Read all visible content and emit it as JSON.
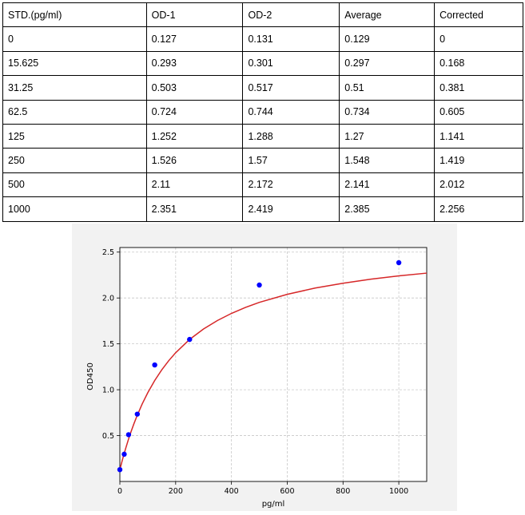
{
  "table": {
    "headers": [
      "STD.(pg/ml)",
      "OD-1",
      "OD-2",
      "Average",
      "Corrected"
    ],
    "rows": [
      [
        "0",
        "0.127",
        "0.131",
        "0.129",
        "0"
      ],
      [
        "15.625",
        "0.293",
        "0.301",
        "0.297",
        "0.168"
      ],
      [
        "31.25",
        "0.503",
        "0.517",
        "0.51",
        "0.381"
      ],
      [
        "62.5",
        "0.724",
        "0.744",
        "0.734",
        "0.605"
      ],
      [
        "125",
        "1.252",
        "1.288",
        "1.27",
        "1.141"
      ],
      [
        "250",
        "1.526",
        "1.57",
        "1.548",
        "1.419"
      ],
      [
        "500",
        "2.11",
        "2.172",
        "2.141",
        "2.012"
      ],
      [
        "1000",
        "2.351",
        "2.419",
        "2.385",
        "2.256"
      ]
    ]
  },
  "chart_data": {
    "type": "scatter",
    "xlabel": "pg/ml",
    "ylabel": "OD450",
    "xlim": [
      0,
      1100
    ],
    "ylim": [
      0,
      2.55
    ],
    "xticks": [
      "0",
      "200",
      "400",
      "600",
      "800",
      "1000"
    ],
    "yticks": [
      "0.5",
      "1.0",
      "1.5",
      "2.0",
      "2.5"
    ],
    "grid": true,
    "points": {
      "x": [
        0,
        15.625,
        31.25,
        62.5,
        125,
        250,
        500,
        1000
      ],
      "y": [
        0.129,
        0.297,
        0.51,
        0.734,
        1.27,
        1.548,
        2.141,
        2.385
      ]
    },
    "fit_curve": {
      "x": [
        0,
        10,
        20,
        30,
        40,
        50,
        60,
        80,
        100,
        125,
        150,
        175,
        200,
        250,
        300,
        350,
        400,
        450,
        500,
        600,
        700,
        800,
        900,
        1000,
        1100
      ],
      "y": [
        0.129,
        0.245,
        0.352,
        0.451,
        0.542,
        0.626,
        0.704,
        0.845,
        0.967,
        1.101,
        1.216,
        1.316,
        1.403,
        1.548,
        1.662,
        1.755,
        1.832,
        1.897,
        1.952,
        2.04,
        2.108,
        2.161,
        2.205,
        2.241,
        2.271
      ]
    },
    "point_color": "#0000ff",
    "curve_color": "#d62728"
  }
}
